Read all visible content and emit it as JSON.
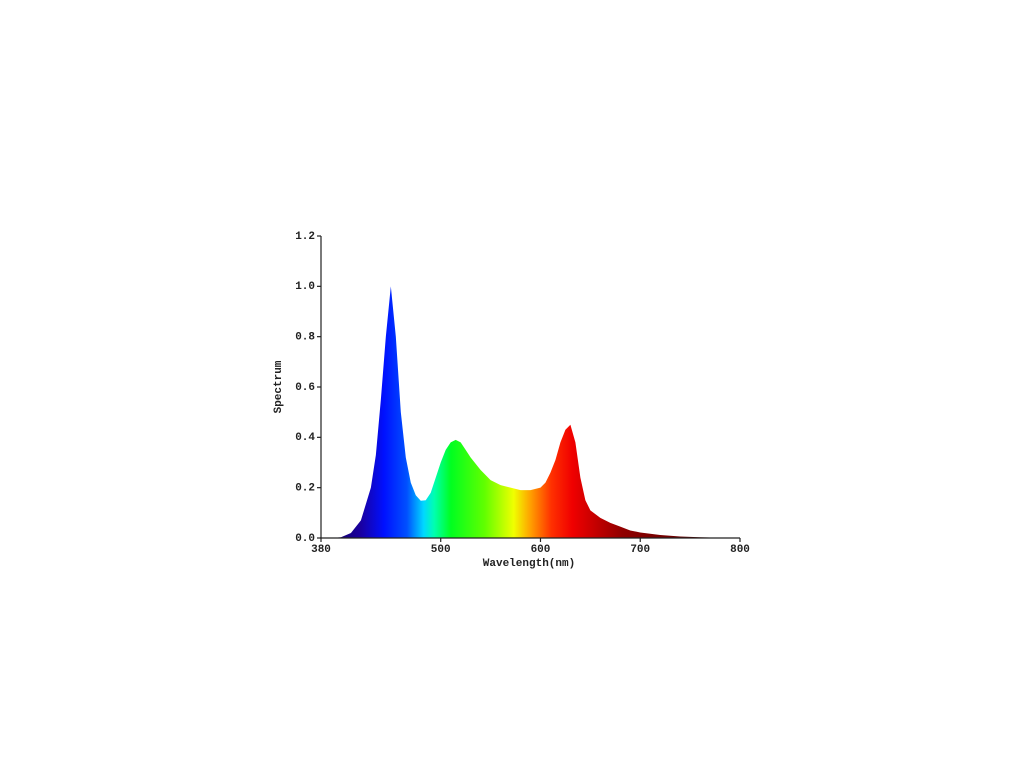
{
  "chart_data": {
    "type": "area",
    "x_label": "Wavelength(nm)",
    "y_label": "Spectrum",
    "x": [
      380,
      390,
      400,
      410,
      420,
      430,
      435,
      440,
      445,
      450,
      455,
      460,
      465,
      470,
      475,
      480,
      485,
      490,
      495,
      500,
      505,
      510,
      515,
      520,
      525,
      530,
      540,
      550,
      560,
      570,
      580,
      590,
      600,
      605,
      610,
      615,
      620,
      625,
      630,
      635,
      640,
      645,
      650,
      660,
      670,
      680,
      690,
      700,
      720,
      740,
      760,
      780,
      800
    ],
    "values": [
      0,
      0,
      0.003,
      0.02,
      0.07,
      0.2,
      0.33,
      0.55,
      0.8,
      1.0,
      0.8,
      0.5,
      0.32,
      0.22,
      0.17,
      0.148,
      0.15,
      0.18,
      0.24,
      0.3,
      0.35,
      0.38,
      0.39,
      0.38,
      0.35,
      0.32,
      0.27,
      0.23,
      0.21,
      0.2,
      0.19,
      0.19,
      0.2,
      0.22,
      0.26,
      0.31,
      0.38,
      0.43,
      0.45,
      0.38,
      0.24,
      0.15,
      0.11,
      0.08,
      0.06,
      0.045,
      0.03,
      0.022,
      0.012,
      0.006,
      0.003,
      0.001,
      0
    ],
    "xlim": [
      380,
      800
    ],
    "xticks": [
      380,
      500,
      600,
      700,
      800
    ],
    "ylim": [
      0,
      1.2
    ],
    "yticks": [
      {
        "value": 0,
        "label": "0.0"
      },
      0.2,
      0.4,
      0.6,
      0.8,
      {
        "value": 1,
        "label": "1.0"
      },
      1.2
    ]
  }
}
